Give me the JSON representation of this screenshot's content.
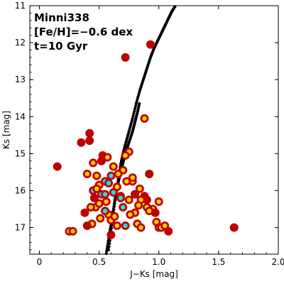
{
  "chart_data": {
    "type": "scatter",
    "title": "",
    "xlabel": "J−Ks [mag]",
    "ylabel": "Ks [mag]",
    "xlim": [
      -0.08,
      2.0
    ],
    "ylim": [
      17.72,
      11.0
    ],
    "y_inverted": true,
    "grid": false,
    "xticks": [
      0,
      0.5,
      1.0,
      1.5,
      2.0
    ],
    "xtick_labels": [
      "0",
      "0.5",
      "1.0",
      "1.5",
      "2.0"
    ],
    "yticks": [
      11,
      12,
      13,
      14,
      15,
      16,
      17
    ],
    "ytick_labels": [
      "11",
      "12",
      "13",
      "14",
      "15",
      "16",
      "17"
    ],
    "annotations": [
      "Minni338",
      "[Fe/H]=−0.6 dex",
      "t=10 Gyr"
    ],
    "colors": {
      "isochrone": "#000000",
      "star_outer": "#c00000",
      "star_inner_yellow": "#ffd000",
      "star_inner_cyan": "#20e0e0"
    },
    "isochrone": {
      "name": "",
      "x": [
        0.58,
        0.6,
        0.62,
        0.64,
        0.66,
        0.68,
        0.7,
        0.72,
        0.75,
        0.78,
        0.81,
        0.84,
        0.87,
        0.9,
        0.93,
        0.96,
        0.99,
        1.02,
        1.05,
        1.08,
        1.11,
        1.14
      ],
      "y": [
        17.6,
        17.1,
        16.6,
        16.1,
        15.7,
        15.3,
        15.0,
        14.75,
        14.4,
        14.05,
        13.65,
        13.3,
        13.0,
        12.7,
        12.4,
        12.15,
        11.95,
        11.75,
        11.55,
        11.35,
        11.15,
        11.0
      ]
    },
    "isochrone2": {
      "name": "",
      "x": [
        0.56,
        0.58,
        0.6,
        0.62,
        0.64,
        0.66,
        0.68,
        0.7,
        0.72,
        0.75,
        0.78,
        0.8,
        0.82,
        0.84
      ],
      "y": [
        17.7,
        17.3,
        16.9,
        16.5,
        16.1,
        15.8,
        15.5,
        15.25,
        15.0,
        14.7,
        14.4,
        14.15,
        13.9,
        13.6
      ]
    },
    "stars": {
      "name": "",
      "x": [
        0.15,
        0.25,
        0.28,
        0.35,
        0.38,
        0.4,
        0.42,
        0.42,
        0.44,
        0.45,
        0.46,
        0.47,
        0.48,
        0.5,
        0.52,
        0.53,
        0.55,
        0.56,
        0.58,
        0.6,
        0.62,
        0.65,
        0.68,
        0.7,
        0.72,
        0.75,
        0.78,
        0.8,
        0.82,
        0.85,
        0.88,
        0.9,
        0.92,
        0.95,
        0.98,
        1.0,
        1.02,
        1.05,
        1.08,
        0.72,
        0.45,
        0.5,
        0.55,
        0.6,
        0.65,
        0.58,
        0.62,
        0.7,
        0.78,
        0.84,
        0.9,
        0.75,
        0.55,
        0.48,
        0.52,
        0.66,
        0.73,
        0.8,
        0.92,
        0.4,
        0.43,
        0.6,
        0.63,
        0.68,
        0.85,
        0.97,
        0.57,
        0.51,
        0.76,
        0.83,
        1.0,
        1.63,
        0.88,
        0.93,
        0.72
      ],
      "y": [
        15.35,
        17.1,
        17.1,
        14.7,
        16.6,
        15.55,
        14.45,
        14.65,
        16.9,
        15.25,
        16.2,
        16.45,
        15.6,
        15.85,
        16.1,
        15.05,
        15.75,
        16.3,
        16.65,
        15.6,
        16.05,
        15.9,
        16.15,
        16.45,
        16.95,
        16.25,
        15.75,
        16.6,
        16.9,
        17.0,
        16.15,
        16.45,
        15.55,
        16.5,
        16.85,
        17.0,
        17.0,
        16.95,
        17.1,
        12.4,
        16.0,
        16.35,
        16.55,
        16.8,
        16.95,
        15.8,
        15.35,
        15.45,
        15.65,
        15.95,
        16.25,
        14.95,
        16.1,
        15.95,
        15.2,
        15.55,
        15.75,
        16.1,
        16.55,
        16.95,
        16.45,
        17.2,
        16.7,
        16.2,
        16.25,
        16.6,
        15.1,
        16.75,
        16.65,
        16.4,
        16.3,
        17.0,
        14.05,
        12.05,
        15.05
      ],
      "inner": [
        "none",
        "yellow",
        "yellow",
        "none",
        "none",
        "yellow",
        "none",
        "none",
        "yellow",
        "yellow",
        "none",
        "yellow",
        "yellow",
        "yellow",
        "cyan",
        "none",
        "cyan",
        "yellow",
        "yellow",
        "cyan",
        "cyan",
        "yellow",
        "cyan",
        "cyan",
        "cyan",
        "yellow",
        "yellow",
        "yellow",
        "yellow",
        "yellow",
        "none",
        "yellow",
        "none",
        "yellow",
        "yellow",
        "yellow",
        "yellow",
        "yellow",
        "none",
        "none",
        "cyan",
        "yellow",
        "cyan",
        "yellow",
        "yellow",
        "cyan",
        "yellow",
        "yellow",
        "yellow",
        "yellow",
        "none",
        "yellow",
        "cyan",
        "yellow",
        "none",
        "yellow",
        "yellow",
        "none",
        "yellow",
        "none",
        "yellow",
        "none",
        "yellow",
        "cyan",
        "yellow",
        "none",
        "yellow",
        "yellow",
        "yellow",
        "yellow",
        "yellow",
        "none",
        "yellow",
        "none",
        "yellow"
      ]
    }
  }
}
